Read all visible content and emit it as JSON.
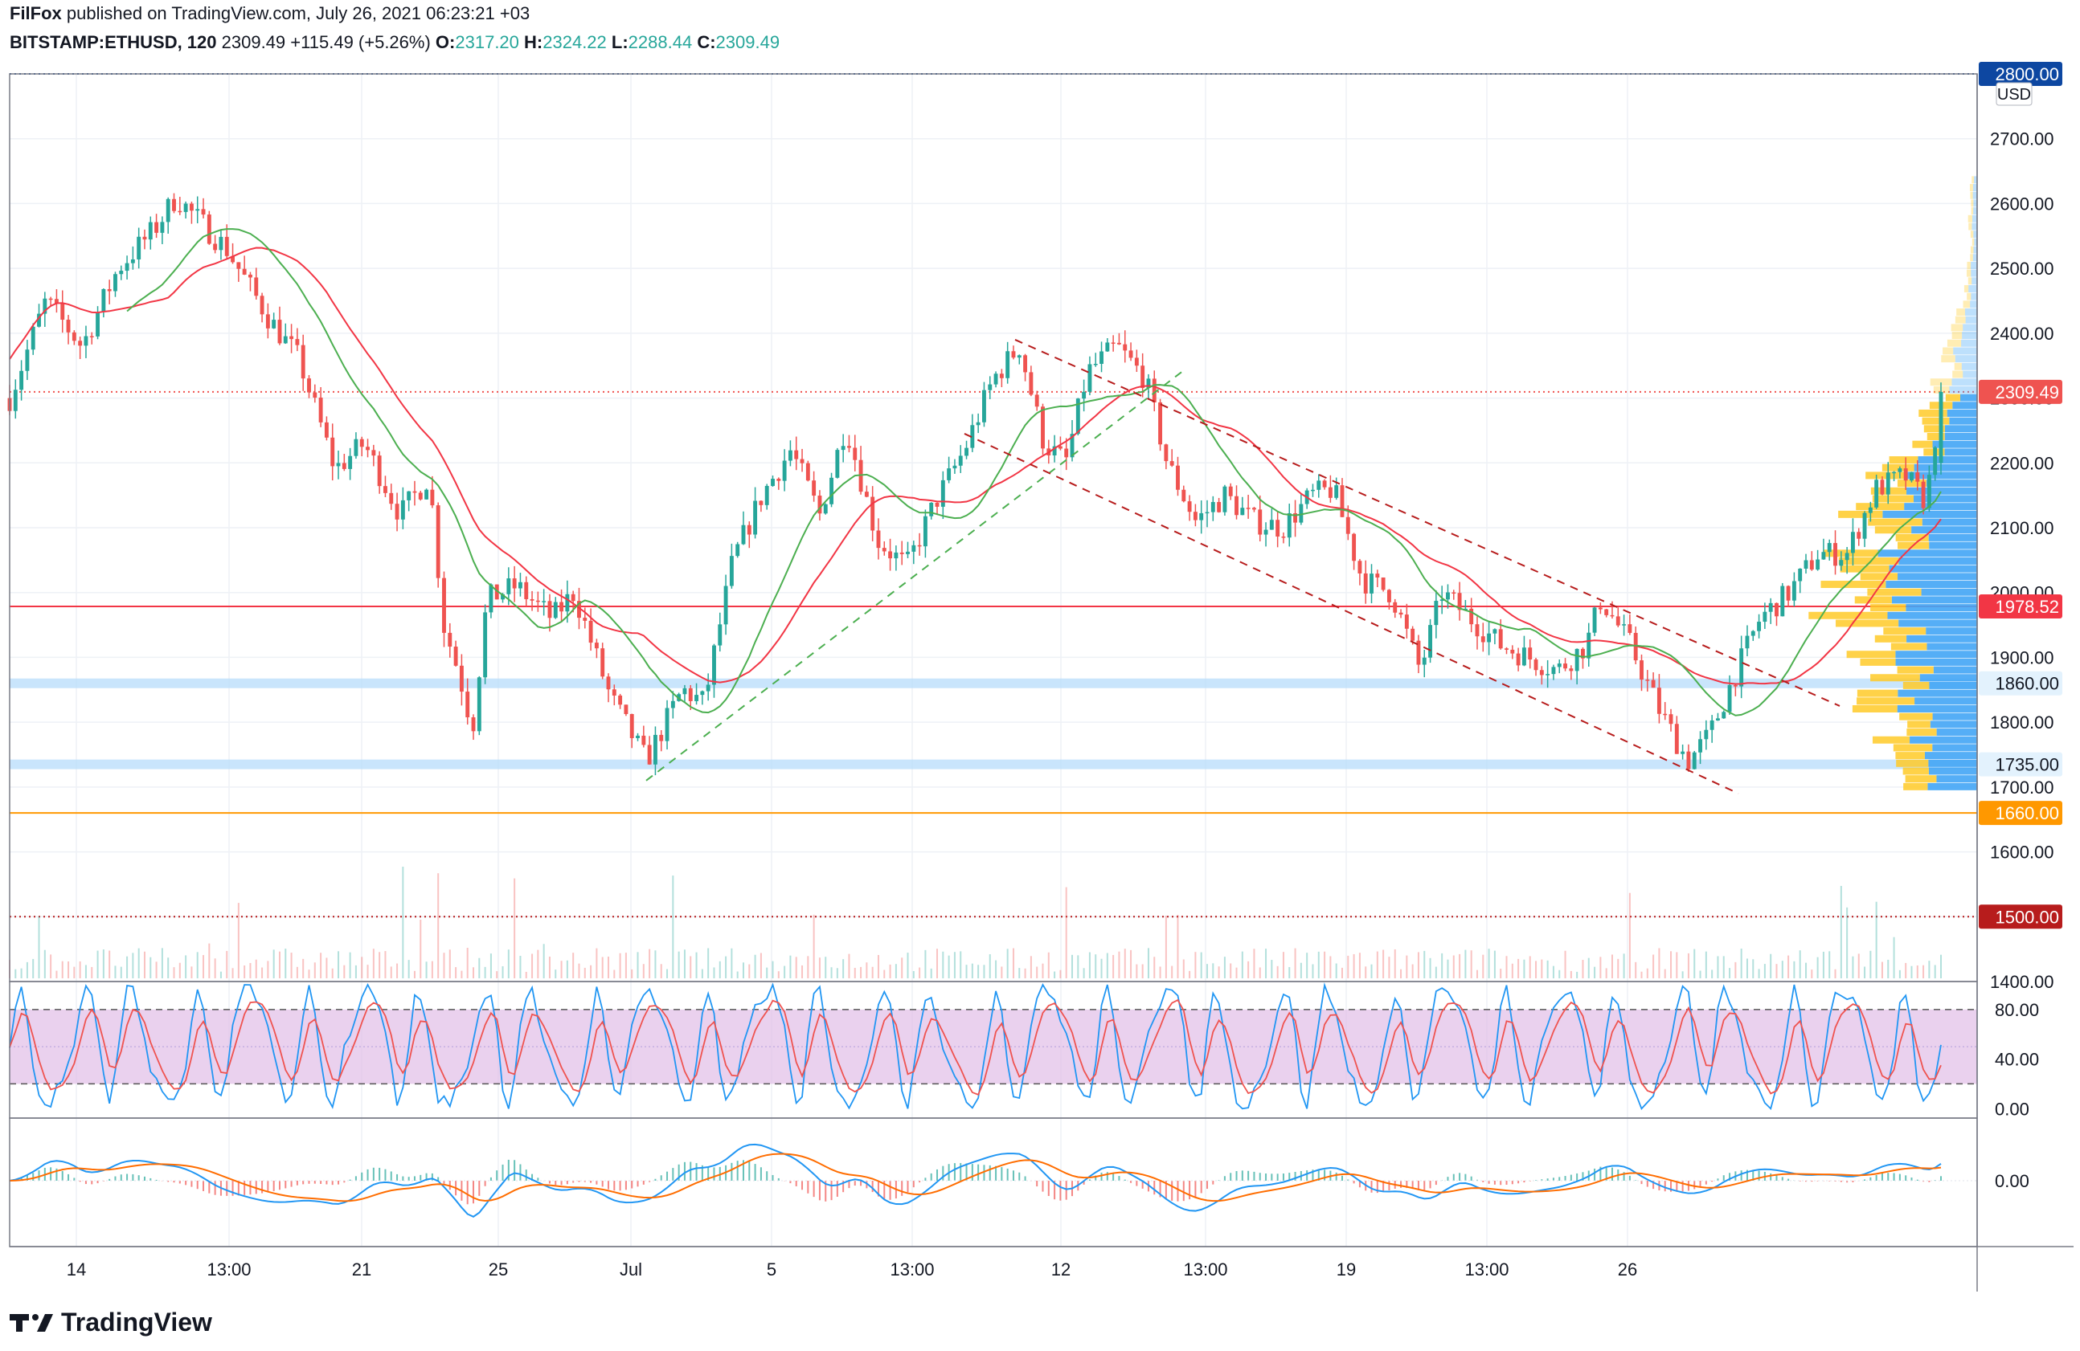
{
  "header": {
    "published": "FilFox published on TradingView.com, July 26, 2021 06:23:21 +03",
    "symbol": "BITSTAMP:ETHUSD, 120",
    "last": "2309.49",
    "change": "+115.49 (+5.26%)",
    "o_label": "O:",
    "o": "2317.20",
    "h_label": "H:",
    "h": "2324.22",
    "l_label": "L:",
    "l": "2288.44",
    "c_label": "C:",
    "c": "2309.49"
  },
  "footer": {
    "brand": "TradingView"
  },
  "colors": {
    "up": "#26a69a",
    "down": "#ef5350",
    "ma_red": "#f23645",
    "ma_green": "#4caf50",
    "stoch_band": "#e1bee7",
    "macd": "#2196f3",
    "signal": "#ff6d00",
    "zone": "#bbdefb",
    "vp_up": "#42a5f5",
    "vp_down": "#ffca28"
  },
  "chart_data": [
    {
      "type": "candlestick",
      "symbol": "BITSTAMP:ETHUSD",
      "interval": "120",
      "currency": "USD",
      "ylim": [
        1400,
        2800
      ],
      "y_ticks": [
        "1400.00",
        "1500.00",
        "1600.00",
        "1700.00",
        "1800.00",
        "1900.00",
        "2000.00",
        "2100.00",
        "2200.00",
        "2300.00",
        "2400.00",
        "2500.00",
        "2600.00",
        "2700.00",
        "2800.00"
      ],
      "x_ticks": [
        "14",
        "13:00",
        "21",
        "25",
        "Jul",
        "5",
        "13:00",
        "12",
        "13:00",
        "19",
        "13:00",
        "26"
      ],
      "price_path": [
        {
          "t": 0,
          "p": 2300
        },
        {
          "t": 25,
          "p": 2450
        },
        {
          "t": 50,
          "p": 2380
        },
        {
          "t": 75,
          "p": 2500
        },
        {
          "t": 100,
          "p": 2560
        },
        {
          "t": 115,
          "p": 2610
        },
        {
          "t": 150,
          "p": 2530
        },
        {
          "t": 180,
          "p": 2420
        },
        {
          "t": 200,
          "p": 2360
        },
        {
          "t": 225,
          "p": 2190
        },
        {
          "t": 245,
          "p": 2230
        },
        {
          "t": 270,
          "p": 2120
        },
        {
          "t": 290,
          "p": 2180
        },
        {
          "t": 300,
          "p": 1950
        },
        {
          "t": 310,
          "p": 1880
        },
        {
          "t": 320,
          "p": 1790
        },
        {
          "t": 330,
          "p": 1990
        },
        {
          "t": 350,
          "p": 2010
        },
        {
          "t": 375,
          "p": 1960
        },
        {
          "t": 390,
          "p": 2000
        },
        {
          "t": 415,
          "p": 1840
        },
        {
          "t": 440,
          "p": 1740
        },
        {
          "t": 465,
          "p": 1850
        },
        {
          "t": 480,
          "p": 1830
        },
        {
          "t": 500,
          "p": 2050
        },
        {
          "t": 520,
          "p": 2150
        },
        {
          "t": 540,
          "p": 2220
        },
        {
          "t": 560,
          "p": 2120
        },
        {
          "t": 578,
          "p": 2260
        },
        {
          "t": 600,
          "p": 2080
        },
        {
          "t": 620,
          "p": 2040
        },
        {
          "t": 640,
          "p": 2140
        },
        {
          "t": 660,
          "p": 2220
        },
        {
          "t": 680,
          "p": 2330
        },
        {
          "t": 698,
          "p": 2380
        },
        {
          "t": 715,
          "p": 2230
        },
        {
          "t": 730,
          "p": 2200
        },
        {
          "t": 745,
          "p": 2340
        },
        {
          "t": 765,
          "p": 2380
        },
        {
          "t": 785,
          "p": 2330
        },
        {
          "t": 800,
          "p": 2200
        },
        {
          "t": 820,
          "p": 2110
        },
        {
          "t": 840,
          "p": 2150
        },
        {
          "t": 860,
          "p": 2110
        },
        {
          "t": 880,
          "p": 2100
        },
        {
          "t": 900,
          "p": 2150
        },
        {
          "t": 915,
          "p": 2160
        },
        {
          "t": 935,
          "p": 2020
        },
        {
          "t": 955,
          "p": 2000
        },
        {
          "t": 975,
          "p": 1880
        },
        {
          "t": 990,
          "p": 2000
        },
        {
          "t": 1010,
          "p": 1960
        },
        {
          "t": 1030,
          "p": 1920
        },
        {
          "t": 1050,
          "p": 1900
        },
        {
          "t": 1070,
          "p": 1880
        },
        {
          "t": 1090,
          "p": 1920
        },
        {
          "t": 1100,
          "p": 1990
        },
        {
          "t": 1120,
          "p": 1920
        },
        {
          "t": 1140,
          "p": 1820
        },
        {
          "t": 1160,
          "p": 1740
        },
        {
          "t": 1175,
          "p": 1780
        },
        {
          "t": 1190,
          "p": 1860
        },
        {
          "t": 1210,
          "p": 1960
        },
        {
          "t": 1230,
          "p": 2000
        },
        {
          "t": 1250,
          "p": 2060
        },
        {
          "t": 1270,
          "p": 2060
        },
        {
          "t": 1290,
          "p": 2160
        },
        {
          "t": 1310,
          "p": 2180
        },
        {
          "t": 1325,
          "p": 2140
        },
        {
          "t": 1335,
          "p": 2309
        }
      ],
      "moving_averages": [
        {
          "name": "MA red",
          "color": "#f23645"
        },
        {
          "name": "MA green",
          "color": "#4caf50"
        }
      ],
      "horizontal_levels": [
        {
          "label": "2800.00",
          "value": 2800,
          "color": "#0d47a1",
          "style": "dotted"
        },
        {
          "label": "2309.49",
          "value": 2309.49,
          "color": "#ef5350",
          "style": "dotted"
        },
        {
          "label": "1978.52",
          "value": 1978.52,
          "color": "#f23645",
          "style": "solid"
        },
        {
          "label": "1860.00",
          "value": 1860,
          "color": "#bbdefb",
          "style": "zone"
        },
        {
          "label": "1735.00",
          "value": 1735,
          "color": "#bbdefb",
          "style": "zone"
        },
        {
          "label": "1660.00",
          "value": 1660,
          "color": "#ff9800",
          "style": "solid"
        },
        {
          "label": "1500.00",
          "value": 1500,
          "color": "#b71c1c",
          "style": "dotted"
        }
      ],
      "trendlines": [
        {
          "name": "green channel support",
          "color": "#4caf50",
          "from": {
            "t": 440,
            "p": 1710
          },
          "to": {
            "t": 810,
            "p": 2340
          }
        },
        {
          "name": "red channel upper",
          "color": "#b71c1c",
          "from": {
            "t": 695,
            "p": 2390
          },
          "to": {
            "t": 1265,
            "p": 1825
          }
        },
        {
          "name": "red channel lower",
          "color": "#b71c1c",
          "from": {
            "t": 660,
            "p": 2245
          },
          "to": {
            "t": 1195,
            "p": 1690
          }
        }
      ],
      "volume_profile": true,
      "volume": true
    },
    {
      "type": "line",
      "indicator": "Stochastic",
      "ylim": [
        -5,
        100
      ],
      "y_ticks": [
        "80.00",
        "40.00",
        "0.00"
      ],
      "band": [
        20,
        80
      ],
      "series": [
        {
          "color": "#2196f3"
        },
        {
          "color": "#ef5350"
        }
      ]
    },
    {
      "type": "line",
      "indicator": "MACD",
      "y_ticks": [
        "0.00"
      ],
      "series": [
        {
          "color": "#2196f3"
        },
        {
          "color": "#ff6d00"
        }
      ],
      "histogram": true
    }
  ]
}
